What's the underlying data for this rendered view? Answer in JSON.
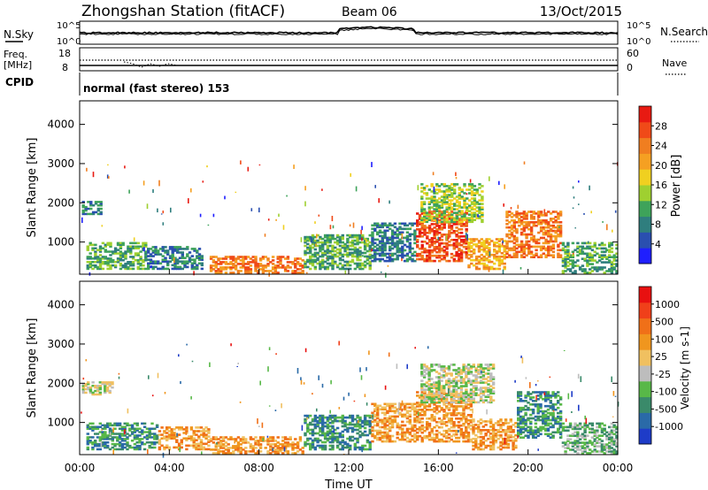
{
  "header": {
    "station": "Zhongshan Station (fitACF)",
    "beam": "Beam 06",
    "date": "13/Oct/2015"
  },
  "summary": {
    "nsky_label": "N.Sky",
    "nsearch_label": "N.Search",
    "freq_label_1": "Freq.",
    "freq_label_2": "[MHz]",
    "nave_label": "Nave",
    "cpid_label": "CPID",
    "cpid_text": "normal (fast stereo) 153",
    "noise_ticks_left": [
      "10^5",
      "10^0"
    ],
    "noise_ticks_right": [
      "10^5",
      "10^0"
    ],
    "freq_ticks": [
      "18",
      "8"
    ],
    "nave_ticks": [
      "60",
      "0"
    ]
  },
  "chart_data": [
    {
      "type": "heatmap",
      "panel": "power",
      "ylabel": "Slant Range [km]",
      "ylim": [
        180,
        4600
      ],
      "y_ticks": [
        "4000",
        "3000",
        "2000",
        "1000"
      ],
      "colorbar_label": "Power [dB]",
      "colorbar_ticks": [
        "28",
        "24",
        "20",
        "16",
        "12",
        "8",
        "4"
      ],
      "colorbar_colors": [
        "#1f1fff",
        "#2a4fb0",
        "#2f7e7e",
        "#3ea35a",
        "#9fd030",
        "#f0d020",
        "#f5a022",
        "#f07e20",
        "#f04a18",
        "#e81a12"
      ],
      "regions": [
        {
          "t0": 0.1,
          "t1": 1.0,
          "r0": 1700,
          "r1": 2050,
          "level": 2
        },
        {
          "t0": 0.3,
          "t1": 3.0,
          "r0": 300,
          "r1": 1000,
          "level": 3
        },
        {
          "t0": 3.0,
          "t1": 5.5,
          "r0": 300,
          "r1": 900,
          "level": 2
        },
        {
          "t0": 5.8,
          "t1": 10.0,
          "r0": 200,
          "r1": 650,
          "level": 7
        },
        {
          "t0": 10.0,
          "t1": 13.0,
          "r0": 300,
          "r1": 1200,
          "level": 3
        },
        {
          "t0": 13.0,
          "t1": 15.0,
          "r0": 500,
          "r1": 1500,
          "level": 2
        },
        {
          "t0": 15.0,
          "t1": 17.3,
          "r0": 500,
          "r1": 1800,
          "level": 8
        },
        {
          "t0": 15.2,
          "t1": 18.0,
          "r0": 1500,
          "r1": 2500,
          "level": 4
        },
        {
          "t0": 17.3,
          "t1": 19.0,
          "r0": 300,
          "r1": 1100,
          "level": 6
        },
        {
          "t0": 19.0,
          "t1": 21.5,
          "r0": 600,
          "r1": 1800,
          "level": 7
        },
        {
          "t0": 21.5,
          "t1": 24.0,
          "r0": 200,
          "r1": 1000,
          "level": 3
        }
      ]
    },
    {
      "type": "heatmap",
      "panel": "velocity",
      "xlabel": "Time UT",
      "x_ticks": [
        "00:00",
        "04:00",
        "08:00",
        "12:00",
        "16:00",
        "20:00",
        "00:00"
      ],
      "xlim": [
        0,
        24
      ],
      "ylabel": "Slant Range [km]",
      "ylim": [
        180,
        4600
      ],
      "y_ticks": [
        "4000",
        "3000",
        "2000",
        "1000"
      ],
      "colorbar_label": "Velocity [m s-1]",
      "colorbar_ticks": [
        "1000",
        "500",
        "100",
        "25",
        "-25",
        "-100",
        "-500",
        "-1000"
      ],
      "colorbar_colors": [
        "#1e3cc8",
        "#2a6aa8",
        "#3a8a6a",
        "#58b848",
        "#bdbdbd",
        "#f0c060",
        "#f0961e",
        "#f07018",
        "#f0401a",
        "#e81010"
      ],
      "regions": [
        {
          "t0": 0.1,
          "t1": 1.5,
          "r0": 1700,
          "r1": 2050,
          "level": 4
        },
        {
          "t0": 0.3,
          "t1": 3.5,
          "r0": 300,
          "r1": 1000,
          "level": 2
        },
        {
          "t0": 3.5,
          "t1": 5.8,
          "r0": 300,
          "r1": 900,
          "level": 6
        },
        {
          "t0": 5.8,
          "t1": 10.0,
          "r0": 200,
          "r1": 650,
          "level": 6
        },
        {
          "t0": 10.0,
          "t1": 13.0,
          "r0": 300,
          "r1": 1200,
          "level": 2
        },
        {
          "t0": 13.0,
          "t1": 15.0,
          "r0": 500,
          "r1": 1500,
          "level": 6
        },
        {
          "t0": 15.0,
          "t1": 17.5,
          "r0": 500,
          "r1": 1800,
          "level": 6
        },
        {
          "t0": 15.2,
          "t1": 18.5,
          "r0": 1500,
          "r1": 2500,
          "level": 4
        },
        {
          "t0": 17.5,
          "t1": 19.5,
          "r0": 300,
          "r1": 1100,
          "level": 6
        },
        {
          "t0": 19.5,
          "t1": 21.5,
          "r0": 600,
          "r1": 1800,
          "level": 2
        },
        {
          "t0": 21.5,
          "t1": 24.0,
          "r0": 200,
          "r1": 1000,
          "level": 3
        }
      ]
    }
  ]
}
